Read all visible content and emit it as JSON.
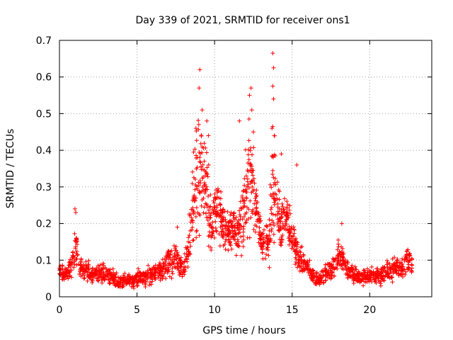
{
  "chart_data": {
    "type": "scatter",
    "title": "Day 339 of 2021, SRMTID for receiver ons1",
    "xlabel": "GPS time / hours",
    "ylabel": "SRMTID / TECUs",
    "xlim": [
      0,
      24
    ],
    "ylim": [
      0,
      0.7
    ],
    "xticks": [
      "0",
      "5",
      "10",
      "15",
      "20"
    ],
    "yticks": [
      "0",
      "0.1",
      "0.2",
      "0.3",
      "0.4",
      "0.5",
      "0.6",
      "0.7"
    ],
    "grid": true,
    "marker": "plus",
    "color": "#ff0000",
    "series": [
      {
        "name": "SRMTID",
        "note": "approximate envelope of the dense scatter read from the figure (hours, TECU)",
        "x": [
          0.0,
          0.25,
          0.5,
          0.75,
          1.0,
          1.25,
          1.5,
          1.75,
          2.0,
          2.25,
          2.5,
          2.75,
          3.0,
          3.25,
          3.5,
          3.75,
          4.0,
          4.25,
          4.5,
          4.75,
          5.0,
          5.25,
          5.5,
          5.75,
          6.0,
          6.25,
          6.5,
          6.75,
          7.0,
          7.25,
          7.5,
          7.75,
          8.0,
          8.25,
          8.5,
          8.75,
          9.0,
          9.25,
          9.5,
          9.75,
          10.0,
          10.25,
          10.5,
          10.75,
          11.0,
          11.25,
          11.5,
          11.75,
          12.0,
          12.25,
          12.5,
          12.75,
          13.0,
          13.25,
          13.5,
          13.75,
          14.0,
          14.25,
          14.5,
          14.75,
          15.0,
          15.25,
          15.5,
          15.75,
          16.0,
          16.25,
          16.5,
          16.75,
          17.0,
          17.25,
          17.5,
          17.75,
          18.0,
          18.25,
          18.5,
          18.75,
          19.0,
          19.25,
          19.5,
          19.75,
          20.0,
          20.25,
          20.5,
          20.75,
          21.0,
          21.25,
          21.5,
          21.75,
          22.0,
          22.25,
          22.5,
          22.75
        ],
        "y": [
          0.07,
          0.06,
          0.065,
          0.08,
          0.15,
          0.09,
          0.07,
          0.075,
          0.06,
          0.065,
          0.06,
          0.07,
          0.06,
          0.055,
          0.05,
          0.045,
          0.04,
          0.05,
          0.045,
          0.04,
          0.05,
          0.055,
          0.05,
          0.06,
          0.06,
          0.07,
          0.065,
          0.08,
          0.09,
          0.1,
          0.11,
          0.08,
          0.07,
          0.12,
          0.2,
          0.3,
          0.38,
          0.33,
          0.3,
          0.2,
          0.22,
          0.24,
          0.2,
          0.18,
          0.18,
          0.2,
          0.17,
          0.22,
          0.25,
          0.32,
          0.3,
          0.22,
          0.15,
          0.14,
          0.16,
          0.3,
          0.26,
          0.2,
          0.22,
          0.2,
          0.16,
          0.13,
          0.1,
          0.09,
          0.08,
          0.06,
          0.05,
          0.05,
          0.06,
          0.065,
          0.07,
          0.09,
          0.12,
          0.11,
          0.08,
          0.065,
          0.06,
          0.055,
          0.05,
          0.055,
          0.06,
          0.055,
          0.06,
          0.06,
          0.065,
          0.07,
          0.075,
          0.08,
          0.08,
          0.09,
          0.1,
          0.09
        ],
        "spread": [
          0.03,
          0.03,
          0.025,
          0.035,
          0.06,
          0.04,
          0.03,
          0.03,
          0.025,
          0.025,
          0.025,
          0.03,
          0.025,
          0.025,
          0.02,
          0.02,
          0.02,
          0.02,
          0.02,
          0.02,
          0.025,
          0.025,
          0.025,
          0.025,
          0.025,
          0.03,
          0.03,
          0.035,
          0.04,
          0.045,
          0.05,
          0.04,
          0.035,
          0.05,
          0.1,
          0.16,
          0.2,
          0.15,
          0.12,
          0.08,
          0.08,
          0.08,
          0.07,
          0.06,
          0.06,
          0.07,
          0.06,
          0.1,
          0.15,
          0.18,
          0.12,
          0.08,
          0.05,
          0.05,
          0.07,
          0.2,
          0.09,
          0.08,
          0.07,
          0.07,
          0.06,
          0.05,
          0.04,
          0.035,
          0.03,
          0.025,
          0.025,
          0.02,
          0.025,
          0.025,
          0.03,
          0.04,
          0.05,
          0.04,
          0.035,
          0.03,
          0.025,
          0.025,
          0.025,
          0.025,
          0.025,
          0.025,
          0.03,
          0.03,
          0.03,
          0.03,
          0.03,
          0.035,
          0.035,
          0.04,
          0.045,
          0.04
        ],
        "peaks": [
          {
            "x": 9.05,
            "y": 0.62
          },
          {
            "x": 9.0,
            "y": 0.57
          },
          {
            "x": 9.2,
            "y": 0.51
          },
          {
            "x": 9.5,
            "y": 0.48
          },
          {
            "x": 9.6,
            "y": 0.44
          },
          {
            "x": 8.8,
            "y": 0.46
          },
          {
            "x": 12.35,
            "y": 0.57
          },
          {
            "x": 12.25,
            "y": 0.55
          },
          {
            "x": 12.4,
            "y": 0.51
          },
          {
            "x": 11.6,
            "y": 0.48
          },
          {
            "x": 12.5,
            "y": 0.45
          },
          {
            "x": 13.75,
            "y": 0.665
          },
          {
            "x": 13.8,
            "y": 0.625
          },
          {
            "x": 13.75,
            "y": 0.575
          },
          {
            "x": 13.8,
            "y": 0.54
          },
          {
            "x": 13.7,
            "y": 0.46
          },
          {
            "x": 13.85,
            "y": 0.44
          },
          {
            "x": 1.0,
            "y": 0.24
          },
          {
            "x": 1.05,
            "y": 0.23
          },
          {
            "x": 15.3,
            "y": 0.36
          },
          {
            "x": 18.2,
            "y": 0.2
          },
          {
            "x": 7.6,
            "y": 0.19
          },
          {
            "x": 14.3,
            "y": 0.39
          }
        ]
      }
    ]
  }
}
